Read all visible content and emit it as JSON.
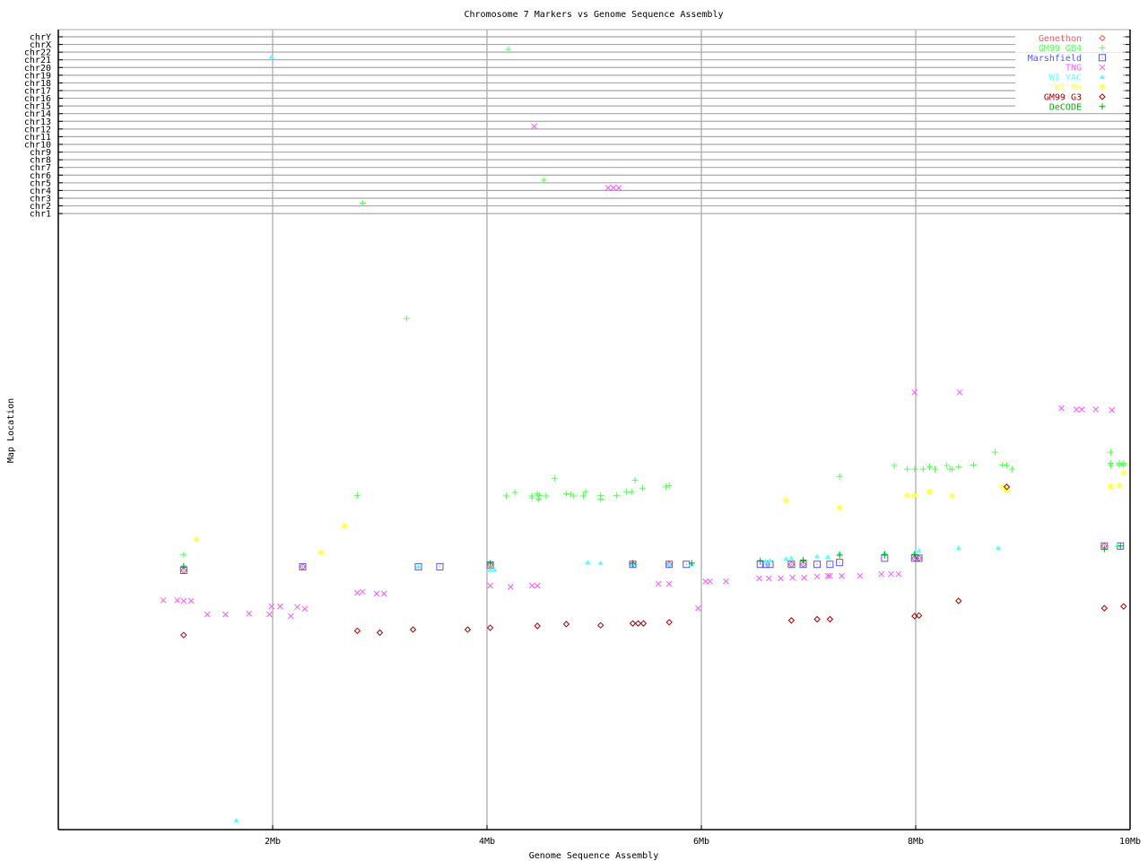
{
  "chart_data": {
    "type": "scatter",
    "title": "Chromosome 7 Markers vs Genome Sequence Assembly",
    "xlabel": "Genome Sequence Assembly",
    "ylabel": "Map Location",
    "xlim": [
      0,
      10
    ],
    "x_unit": "Mb",
    "x_ticks": [
      {
        "value": 2,
        "label": "2Mb"
      },
      {
        "value": 4,
        "label": "4Mb"
      },
      {
        "value": 6,
        "label": "6Mb"
      },
      {
        "value": 8,
        "label": "8Mb"
      },
      {
        "value": 10,
        "label": "10Mb"
      }
    ],
    "ylim_chr7": [
      0,
      100
    ],
    "other_chromosomes": [
      "chrY",
      "chrX",
      "chr22",
      "chr21",
      "chr20",
      "chr19",
      "chr18",
      "chr17",
      "chr16",
      "chr15",
      "chr14",
      "chr13",
      "chr12",
      "chr11",
      "chr10",
      "chr9",
      "chr8",
      "chr7",
      "chr6",
      "chr5",
      "chr4",
      "chr3",
      "chr2",
      "chr1"
    ],
    "grid": true,
    "legend_position": "top-right",
    "series": [
      {
        "name": "Genethon",
        "color": "#ff5555",
        "marker": "diamond",
        "points": [
          [
            1.17,
            42.5
          ],
          [
            2.28,
            43.1
          ],
          [
            4.03,
            43.4
          ],
          [
            5.36,
            43.5
          ],
          [
            5.7,
            43.5
          ],
          [
            6.84,
            43.5
          ],
          [
            6.95,
            43.5
          ],
          [
            7.99,
            44.5
          ],
          [
            8.03,
            44.5
          ],
          [
            9.76,
            46.5
          ]
        ]
      },
      {
        "name": "GM99 GB4",
        "color": "#55ff55",
        "marker": "plus",
        "points": [
          [
            1.17,
            45.1
          ],
          [
            2.79,
            54.8
          ],
          [
            3.25,
            83.8
          ],
          [
            4.18,
            54.7
          ],
          [
            4.26,
            55.3
          ],
          [
            4.42,
            54.7
          ],
          [
            4.42,
            54.4
          ],
          [
            4.47,
            55.1
          ],
          [
            4.48,
            54.2
          ],
          [
            4.49,
            54.8
          ],
          [
            4.55,
            54.7
          ],
          [
            4.63,
            57.6
          ],
          [
            4.74,
            55.1
          ],
          [
            4.78,
            55.0
          ],
          [
            4.81,
            54.7
          ],
          [
            4.9,
            54.7
          ],
          [
            4.92,
            55.4
          ],
          [
            5.06,
            54.8
          ],
          [
            5.06,
            54.2
          ],
          [
            5.21,
            54.8
          ],
          [
            5.3,
            55.4
          ],
          [
            5.35,
            55.4
          ],
          [
            5.38,
            57.3
          ],
          [
            5.45,
            56.0
          ],
          [
            5.67,
            56.2
          ],
          [
            5.7,
            56.4
          ],
          [
            7.29,
            57.9
          ],
          [
            7.8,
            59.7
          ],
          [
            7.92,
            59.1
          ],
          [
            7.99,
            59.1
          ],
          [
            8.07,
            59.1
          ],
          [
            8.13,
            59.5
          ],
          [
            8.18,
            59.1
          ],
          [
            8.29,
            59.7
          ],
          [
            8.32,
            59.1
          ],
          [
            8.34,
            59.1
          ],
          [
            8.4,
            59.5
          ],
          [
            8.54,
            59.8
          ],
          [
            8.74,
            61.9
          ],
          [
            8.81,
            59.8
          ],
          [
            8.85,
            59.7
          ],
          [
            8.9,
            59.1
          ],
          [
            9.82,
            61.9
          ],
          [
            9.82,
            60.1
          ],
          [
            9.82,
            59.7
          ],
          [
            9.9,
            60.1
          ],
          [
            9.9,
            59.8
          ],
          [
            9.94,
            60.1
          ],
          [
            9.94,
            59.8
          ],
          [
            4.2,
            "chr22"
          ],
          [
            4.53,
            "chr5"
          ],
          [
            2.84,
            "chr2"
          ]
        ]
      },
      {
        "name": "Marshfield",
        "color": "#5555ff",
        "marker": "square",
        "points": [
          [
            1.17,
            42.5
          ],
          [
            2.28,
            43.1
          ],
          [
            3.36,
            43.1
          ],
          [
            3.56,
            43.1
          ],
          [
            4.03,
            43.4
          ],
          [
            5.36,
            43.5
          ],
          [
            5.7,
            43.5
          ],
          [
            5.86,
            43.5
          ],
          [
            6.55,
            43.5
          ],
          [
            6.6,
            43.5
          ],
          [
            6.64,
            43.5
          ],
          [
            6.84,
            43.5
          ],
          [
            6.95,
            43.5
          ],
          [
            7.08,
            43.5
          ],
          [
            7.2,
            43.5
          ],
          [
            7.29,
            43.8
          ],
          [
            7.71,
            44.5
          ],
          [
            7.99,
            44.5
          ],
          [
            8.03,
            44.5
          ],
          [
            9.76,
            46.5
          ],
          [
            9.91,
            46.5
          ]
        ]
      },
      {
        "name": "TNG",
        "color": "#ff55ff",
        "marker": "cross",
        "points": [
          [
            0.98,
            37.6
          ],
          [
            1.11,
            37.6
          ],
          [
            1.17,
            37.5
          ],
          [
            1.24,
            37.5
          ],
          [
            1.39,
            35.3
          ],
          [
            1.56,
            35.3
          ],
          [
            1.78,
            35.4
          ],
          [
            1.97,
            35.3
          ],
          [
            1.99,
            36.6
          ],
          [
            2.07,
            36.6
          ],
          [
            2.17,
            35.0
          ],
          [
            2.23,
            36.5
          ],
          [
            2.3,
            36.2
          ],
          [
            2.79,
            38.8
          ],
          [
            2.84,
            39.0
          ],
          [
            2.97,
            38.7
          ],
          [
            3.04,
            38.7
          ],
          [
            4.03,
            40.0
          ],
          [
            4.22,
            39.8
          ],
          [
            4.42,
            40.0
          ],
          [
            4.47,
            40.0
          ],
          [
            5.6,
            40.3
          ],
          [
            5.7,
            40.3
          ],
          [
            5.97,
            36.3
          ],
          [
            6.04,
            40.7
          ],
          [
            6.08,
            40.7
          ],
          [
            6.23,
            40.7
          ],
          [
            6.54,
            41.2
          ],
          [
            6.63,
            41.2
          ],
          [
            6.74,
            41.2
          ],
          [
            6.85,
            41.3
          ],
          [
            6.96,
            41.3
          ],
          [
            7.08,
            41.5
          ],
          [
            7.18,
            41.6
          ],
          [
            7.2,
            41.6
          ],
          [
            7.31,
            41.6
          ],
          [
            7.48,
            41.6
          ],
          [
            7.68,
            41.9
          ],
          [
            7.77,
            41.9
          ],
          [
            7.84,
            41.9
          ],
          [
            7.99,
            71.7
          ],
          [
            8.41,
            71.7
          ],
          [
            9.36,
            69.1
          ],
          [
            9.5,
            68.9
          ],
          [
            9.55,
            68.9
          ],
          [
            9.68,
            68.9
          ],
          [
            9.83,
            68.8
          ],
          [
            4.44,
            "chr12"
          ],
          [
            5.13,
            "chr4"
          ],
          [
            5.18,
            "chr4"
          ],
          [
            5.23,
            "chr4"
          ]
        ]
      },
      {
        "name": "WI YAC",
        "color": "#55ffff",
        "marker": "triangle",
        "points": [
          [
            1.66,
            1.5
          ],
          [
            3.36,
            43.1
          ],
          [
            4.03,
            42.6
          ],
          [
            4.07,
            42.6
          ],
          [
            4.94,
            43.8
          ],
          [
            5.06,
            43.7
          ],
          [
            5.36,
            43.5
          ],
          [
            5.7,
            43.4
          ],
          [
            5.91,
            43.5
          ],
          [
            6.6,
            44.0
          ],
          [
            6.64,
            44.1
          ],
          [
            6.79,
            44.4
          ],
          [
            6.84,
            44.5
          ],
          [
            7.08,
            44.8
          ],
          [
            7.18,
            44.7
          ],
          [
            7.29,
            45.3
          ],
          [
            7.71,
            45.4
          ],
          [
            7.99,
            45.4
          ],
          [
            8.03,
            45.7
          ],
          [
            8.4,
            46.2
          ],
          [
            8.77,
            46.2
          ],
          [
            9.88,
            46.6
          ],
          [
            1.99,
            "chr21"
          ]
        ]
      },
      {
        "name": "WI RH",
        "color": "#ffff55",
        "marker": "star",
        "points": [
          [
            1.29,
            47.6
          ],
          [
            2.45,
            45.4
          ],
          [
            2.67,
            49.8
          ],
          [
            6.79,
            54.0
          ],
          [
            7.29,
            52.8
          ],
          [
            7.92,
            54.8
          ],
          [
            7.99,
            54.8
          ],
          [
            8.13,
            55.4
          ],
          [
            8.34,
            54.7
          ],
          [
            8.81,
            56.2
          ],
          [
            8.85,
            55.7
          ],
          [
            9.82,
            56.3
          ],
          [
            9.9,
            56.4
          ],
          [
            9.94,
            58.5
          ]
        ]
      },
      {
        "name": "GM99 G3",
        "color": "#aa0000",
        "marker": "diamond",
        "points": [
          [
            1.17,
            31.9
          ],
          [
            2.79,
            32.6
          ],
          [
            3.0,
            32.3
          ],
          [
            3.31,
            32.8
          ],
          [
            3.82,
            32.8
          ],
          [
            4.03,
            33.1
          ],
          [
            4.47,
            33.4
          ],
          [
            4.74,
            33.7
          ],
          [
            5.06,
            33.5
          ],
          [
            5.36,
            33.8
          ],
          [
            5.41,
            33.8
          ],
          [
            5.46,
            33.8
          ],
          [
            5.7,
            34.0
          ],
          [
            6.84,
            34.3
          ],
          [
            7.08,
            34.5
          ],
          [
            7.2,
            34.5
          ],
          [
            7.99,
            35.0
          ],
          [
            8.03,
            35.1
          ],
          [
            8.4,
            37.5
          ],
          [
            8.85,
            56.2
          ],
          [
            9.76,
            36.3
          ],
          [
            9.94,
            36.6
          ]
        ]
      },
      {
        "name": "DeCODE",
        "color": "#00aa00",
        "marker": "plus",
        "points": [
          [
            1.17,
            43.2
          ],
          [
            4.03,
            43.7
          ],
          [
            5.36,
            43.7
          ],
          [
            5.91,
            43.7
          ],
          [
            6.55,
            44.1
          ],
          [
            6.95,
            44.2
          ],
          [
            7.29,
            45.0
          ],
          [
            7.71,
            45.1
          ],
          [
            7.99,
            45.1
          ],
          [
            9.76,
            46.0
          ],
          [
            9.91,
            46.5
          ]
        ]
      }
    ]
  }
}
